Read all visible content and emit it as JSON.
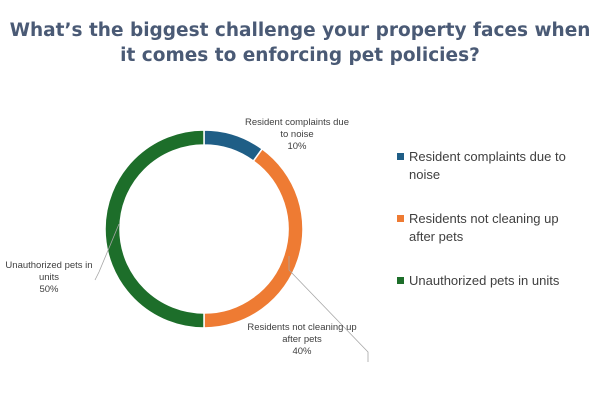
{
  "title_lines": [
    "What’s the biggest challenge your property faces when",
    "it comes to enforcing pet policies?"
  ],
  "colors": {
    "blue": "#1f5e86",
    "orange": "#ee7b33",
    "green": "#1d6e2a"
  },
  "chart_data": {
    "type": "pie",
    "variant": "doughnut",
    "title": "What’s the biggest challenge your property faces when it comes to enforcing pet policies?",
    "series": [
      {
        "name": "Resident complaints due to noise",
        "value": 10,
        "label": "10%",
        "color": "#1f5e86",
        "label_lines": [
          "Resident complaints due",
          "to noise",
          "10%"
        ]
      },
      {
        "name": "Residents not cleaning up after pets",
        "value": 40,
        "label": "40%",
        "color": "#ee7b33",
        "label_lines": [
          "Residents not cleaning up",
          "after pets",
          "40%"
        ]
      },
      {
        "name": "Unauthorized pets in units",
        "value": 50,
        "label": "50%",
        "color": "#1d6e2a",
        "label_lines": [
          "Unauthorized pets in",
          "units",
          "50%"
        ]
      }
    ],
    "legend": {
      "position": "right",
      "items": [
        {
          "lines": [
            "Resident complaints due to",
            "noise"
          ],
          "color": "#1f5e86"
        },
        {
          "lines": [
            "Residents not cleaning up",
            "after pets"
          ],
          "color": "#ee7b33"
        },
        {
          "lines": [
            "Unauthorized pets in units"
          ],
          "color": "#1d6e2a"
        }
      ]
    }
  }
}
